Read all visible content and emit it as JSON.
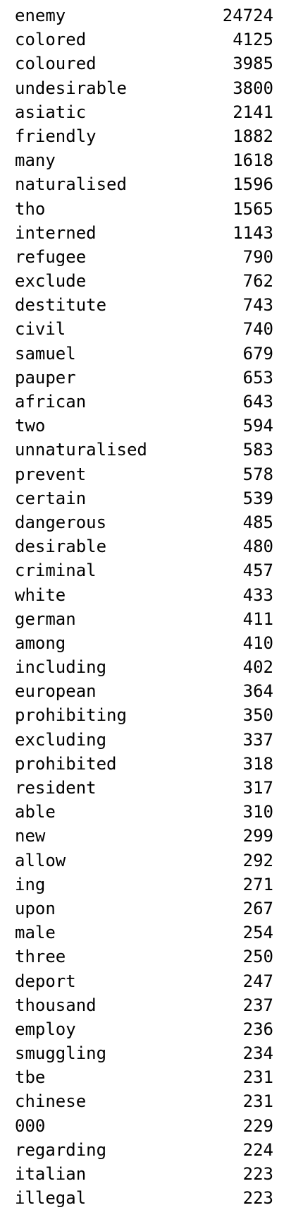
{
  "rows": [
    {
      "word": "enemy",
      "count": "24724"
    },
    {
      "word": "colored",
      "count": "4125"
    },
    {
      "word": "coloured",
      "count": "3985"
    },
    {
      "word": "undesirable",
      "count": "3800"
    },
    {
      "word": "asiatic",
      "count": "2141"
    },
    {
      "word": "friendly",
      "count": "1882"
    },
    {
      "word": "many",
      "count": "1618"
    },
    {
      "word": "naturalised",
      "count": "1596"
    },
    {
      "word": "tho",
      "count": "1565"
    },
    {
      "word": "interned",
      "count": "1143"
    },
    {
      "word": "refugee",
      "count": "790"
    },
    {
      "word": "exclude",
      "count": "762"
    },
    {
      "word": "destitute",
      "count": "743"
    },
    {
      "word": "civil",
      "count": "740"
    },
    {
      "word": "samuel",
      "count": "679"
    },
    {
      "word": "pauper",
      "count": "653"
    },
    {
      "word": "african",
      "count": "643"
    },
    {
      "word": "two",
      "count": "594"
    },
    {
      "word": "unnaturalised",
      "count": "583"
    },
    {
      "word": "prevent",
      "count": "578"
    },
    {
      "word": "certain",
      "count": "539"
    },
    {
      "word": "dangerous",
      "count": "485"
    },
    {
      "word": "desirable",
      "count": "480"
    },
    {
      "word": "criminal",
      "count": "457"
    },
    {
      "word": "white",
      "count": "433"
    },
    {
      "word": "german",
      "count": "411"
    },
    {
      "word": "among",
      "count": "410"
    },
    {
      "word": "including",
      "count": "402"
    },
    {
      "word": "european",
      "count": "364"
    },
    {
      "word": "prohibiting",
      "count": "350"
    },
    {
      "word": "excluding",
      "count": "337"
    },
    {
      "word": "prohibited",
      "count": "318"
    },
    {
      "word": "resident",
      "count": "317"
    },
    {
      "word": "able",
      "count": "310"
    },
    {
      "word": "new",
      "count": "299"
    },
    {
      "word": "allow",
      "count": "292"
    },
    {
      "word": "ing",
      "count": "271"
    },
    {
      "word": "upon",
      "count": "267"
    },
    {
      "word": "male",
      "count": "254"
    },
    {
      "word": "three",
      "count": "250"
    },
    {
      "word": "deport",
      "count": "247"
    },
    {
      "word": "thousand",
      "count": "237"
    },
    {
      "word": "employ",
      "count": "236"
    },
    {
      "word": "smuggling",
      "count": "234"
    },
    {
      "word": "tbe",
      "count": "231"
    },
    {
      "word": "chinese",
      "count": "231"
    },
    {
      "word": "000",
      "count": "229"
    },
    {
      "word": "regarding",
      "count": "224"
    },
    {
      "word": "italian",
      "count": "223"
    },
    {
      "word": "illegal",
      "count": "223"
    }
  ]
}
